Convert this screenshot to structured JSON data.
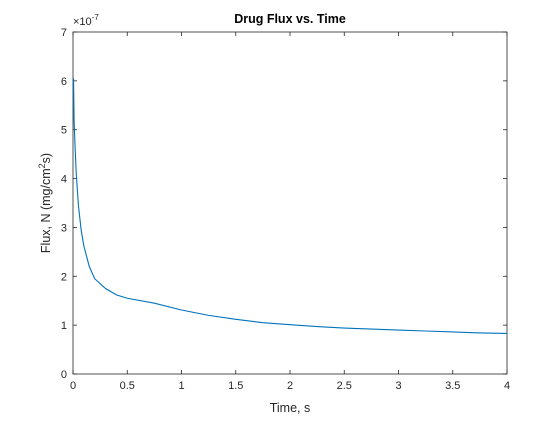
{
  "chart_data": {
    "type": "line",
    "title": "Drug Flux vs. Time",
    "xlabel": "Time, s",
    "ylabel": {
      "prefix": "Flux, N (mg/cm",
      "sup": "2",
      "suffix": "s)"
    },
    "y_exponent": {
      "base": "×10",
      "power": "-7"
    },
    "xlim": [
      0,
      4
    ],
    "ylim": [
      0,
      7
    ],
    "x_ticks": [
      0,
      0.5,
      1,
      1.5,
      2,
      2.5,
      3,
      3.5,
      4
    ],
    "x_tick_labels": [
      "0",
      "0.5",
      "1",
      "1.5",
      "2",
      "2.5",
      "3",
      "3.5",
      "4"
    ],
    "y_ticks": [
      0,
      1,
      2,
      3,
      4,
      5,
      6,
      7
    ],
    "y_tick_labels": [
      "0",
      "1",
      "2",
      "3",
      "4",
      "5",
      "6",
      "7"
    ],
    "grid": false,
    "series": [
      {
        "color": "#0072bd",
        "x": [
          0.005,
          0.01,
          0.02,
          0.03,
          0.05,
          0.075,
          0.1,
          0.15,
          0.2,
          0.3,
          0.4,
          0.5,
          0.75,
          1.0,
          1.25,
          1.5,
          1.75,
          2.0,
          2.25,
          2.5,
          2.75,
          3.0,
          3.25,
          3.5,
          3.75,
          4.0
        ],
        "y": [
          6.05,
          5.2,
          4.6,
          4.1,
          3.45,
          2.95,
          2.62,
          2.2,
          1.95,
          1.75,
          1.62,
          1.55,
          1.45,
          1.31,
          1.2,
          1.12,
          1.05,
          1.01,
          0.97,
          0.94,
          0.92,
          0.9,
          0.88,
          0.86,
          0.84,
          0.83
        ]
      }
    ]
  }
}
